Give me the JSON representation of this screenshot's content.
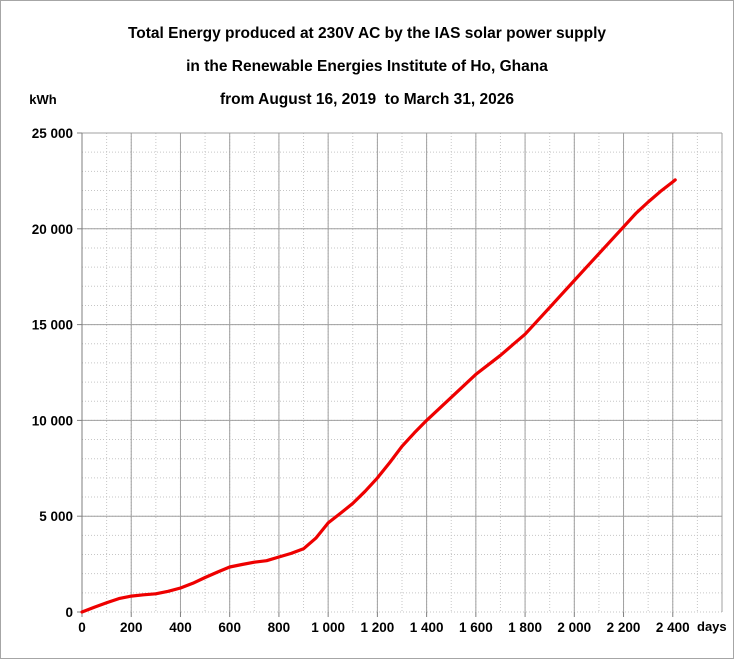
{
  "title": {
    "line1": "Total Energy produced at 230V AC by the IAS solar power supply",
    "line2": "in the Renewable Energies Institute of Ho, Ghana",
    "line3": "from August 16, 2019  to March 31, 2026"
  },
  "axis_units": {
    "y": "kWh",
    "x": "days"
  },
  "chart_data": {
    "type": "line",
    "title": "Total Energy produced at 230V AC by the IAS solar power supply in the Renewable Energies Institute of Ho, Ghana from August 16, 2019 to March 31, 2026",
    "xlabel": "days",
    "ylabel": "kWh",
    "xlim": [
      0,
      2600
    ],
    "ylim": [
      0,
      25000
    ],
    "x_minor_step": 100,
    "y_minor_step": 1000,
    "x_major_step": 200,
    "y_major_step": 5000,
    "grid": "major-solid-gray, minor-dotted-light",
    "legend": "none",
    "line_color": "#ee0000",
    "x_ticks": {
      "values": [
        0,
        200,
        400,
        600,
        800,
        1000,
        1200,
        1400,
        1600,
        1800,
        2000,
        2200,
        2400
      ],
      "labels": [
        "0",
        "200",
        "400",
        "600",
        "800",
        "1 000",
        "1 200",
        "1 400",
        "1 600",
        "1 800",
        "2 000",
        "2 200",
        "2 400"
      ]
    },
    "y_ticks": {
      "values": [
        0,
        5000,
        10000,
        15000,
        20000,
        25000
      ],
      "labels": [
        "0",
        "5 000",
        "10 000",
        "15 000",
        "20 000",
        "25 000"
      ]
    },
    "series": [
      {
        "name": "cumulative-energy-kwh",
        "points": [
          [
            0,
            0
          ],
          [
            50,
            250
          ],
          [
            100,
            480
          ],
          [
            150,
            700
          ],
          [
            200,
            830
          ],
          [
            250,
            900
          ],
          [
            300,
            950
          ],
          [
            350,
            1080
          ],
          [
            400,
            1250
          ],
          [
            450,
            1500
          ],
          [
            500,
            1800
          ],
          [
            550,
            2080
          ],
          [
            600,
            2350
          ],
          [
            650,
            2480
          ],
          [
            700,
            2600
          ],
          [
            750,
            2680
          ],
          [
            800,
            2870
          ],
          [
            850,
            3060
          ],
          [
            900,
            3300
          ],
          [
            950,
            3850
          ],
          [
            1000,
            4650
          ],
          [
            1050,
            5150
          ],
          [
            1100,
            5670
          ],
          [
            1150,
            6300
          ],
          [
            1200,
            7000
          ],
          [
            1250,
            7800
          ],
          [
            1300,
            8650
          ],
          [
            1350,
            9350
          ],
          [
            1400,
            10000
          ],
          [
            1450,
            10600
          ],
          [
            1500,
            11200
          ],
          [
            1550,
            11800
          ],
          [
            1600,
            12400
          ],
          [
            1650,
            12900
          ],
          [
            1700,
            13400
          ],
          [
            1750,
            13950
          ],
          [
            1800,
            14500
          ],
          [
            1850,
            15200
          ],
          [
            1900,
            15900
          ],
          [
            1950,
            16600
          ],
          [
            2000,
            17300
          ],
          [
            2050,
            18000
          ],
          [
            2100,
            18700
          ],
          [
            2150,
            19400
          ],
          [
            2200,
            20100
          ],
          [
            2250,
            20800
          ],
          [
            2300,
            21400
          ],
          [
            2350,
            21950
          ],
          [
            2400,
            22450
          ],
          [
            2410,
            22550
          ]
        ]
      }
    ]
  }
}
